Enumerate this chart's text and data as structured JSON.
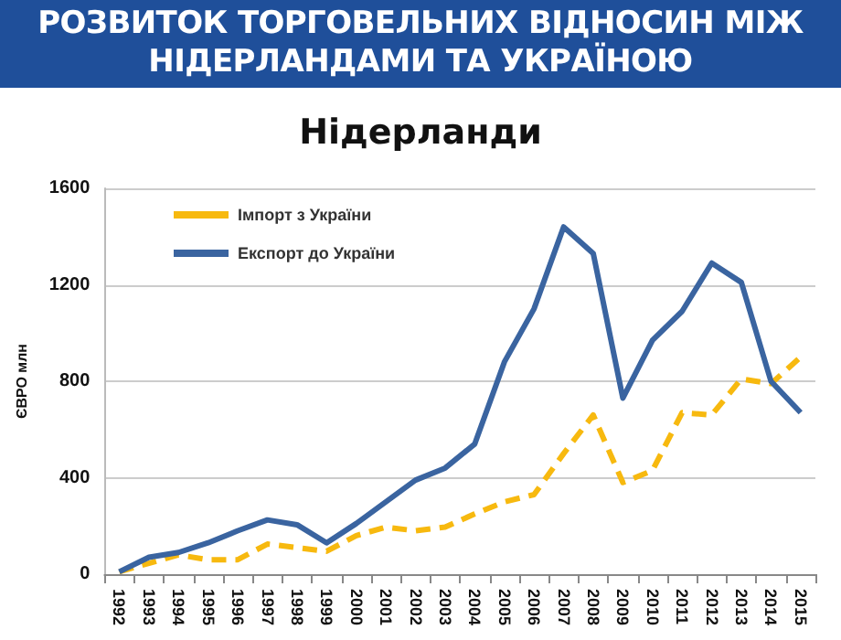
{
  "chart_data": {
    "type": "line",
    "title": "РОЗВИТОК ТОРГОВЕЛЬНИХ ВІДНОСИН МІЖ НІДЕРЛАНДАМИ ТА УКРАЇНОЮ",
    "subtitle": "Нідерланди",
    "ylabel": "ЄВРО млн",
    "categories": [
      "1992",
      "1993",
      "1994",
      "1995",
      "1996",
      "1997",
      "1998",
      "1999",
      "2000",
      "2001",
      "2002",
      "2003",
      "2004",
      "2005",
      "2006",
      "2007",
      "2008",
      "2009",
      "2010",
      "2011",
      "2012",
      "2013",
      "2014",
      "2015"
    ],
    "series": [
      {
        "name": "Імпорт з України",
        "color": "#f7b90f",
        "line_style": "dashed",
        "values": [
          10,
          45,
          80,
          60,
          60,
          125,
          110,
          95,
          160,
          195,
          180,
          195,
          250,
          300,
          330,
          500,
          660,
          380,
          430,
          670,
          660,
          810,
          790,
          900
        ]
      },
      {
        "name": "Експорт до України",
        "color": "#3a64a0",
        "line_style": "solid",
        "values": [
          10,
          70,
          90,
          130,
          180,
          225,
          205,
          130,
          210,
          300,
          390,
          440,
          540,
          880,
          1100,
          1440,
          1330,
          730,
          970,
          1090,
          1290,
          1210,
          800,
          670
        ]
      }
    ],
    "ylim": [
      0,
      1600
    ],
    "yticks": [
      0,
      400,
      800,
      1200,
      1600
    ],
    "grid": "y",
    "legend": "top left",
    "marker": "none"
  }
}
